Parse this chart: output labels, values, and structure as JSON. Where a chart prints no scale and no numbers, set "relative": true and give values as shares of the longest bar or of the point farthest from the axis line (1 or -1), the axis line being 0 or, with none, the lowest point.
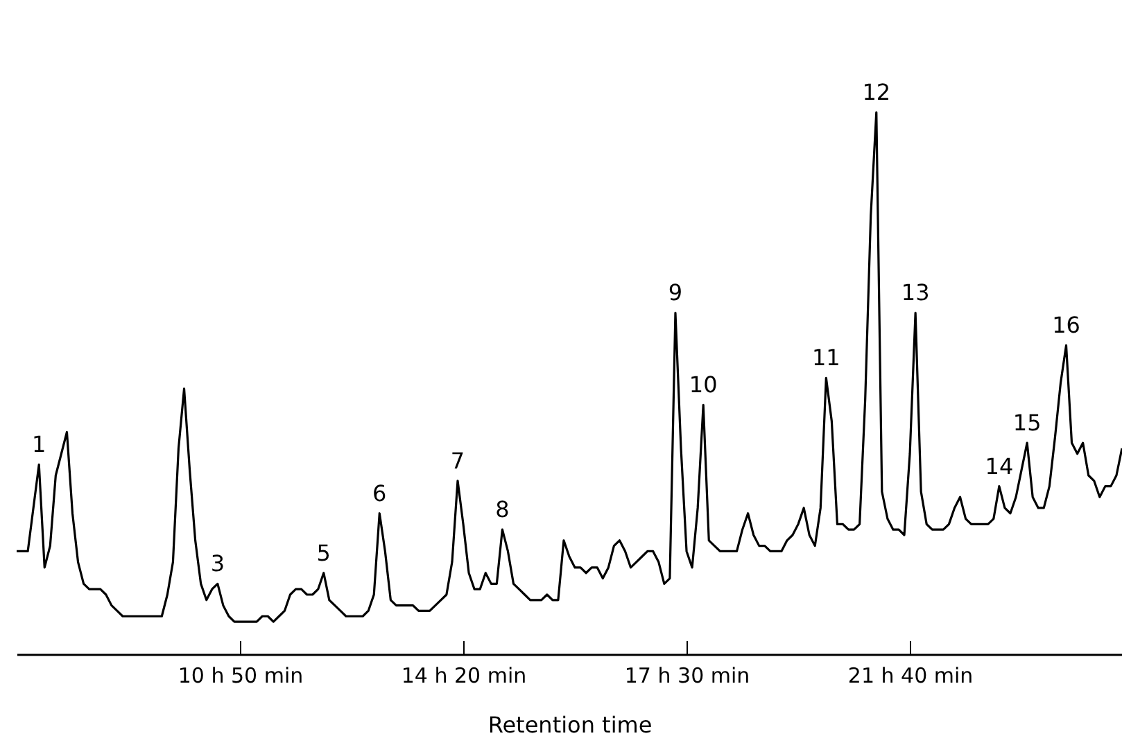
{
  "chart_data": {
    "type": "line",
    "relative": true,
    "xlabel": "Retention time",
    "categories": [
      null,
      null,
      null,
      null,
      null,
      null,
      null,
      null,
      null,
      null,
      null,
      null,
      null,
      null,
      null,
      null,
      null,
      null,
      null,
      null,
      null,
      null,
      null,
      null,
      null,
      null,
      null,
      null,
      null,
      null,
      null,
      null,
      null,
      null,
      null,
      null,
      null,
      null,
      null,
      null,
      "10 h 50 min",
      null,
      null,
      null,
      null,
      null,
      null,
      null,
      null,
      null,
      null,
      null,
      null,
      null,
      null,
      null,
      null,
      null,
      null,
      null,
      null,
      null,
      null,
      null,
      null,
      null,
      null,
      null,
      null,
      null,
      null,
      null,
      null,
      null,
      null,
      null,
      null,
      null,
      null,
      null,
      "14 h 20 min",
      null,
      null,
      null,
      null,
      null,
      null,
      null,
      null,
      null,
      null,
      null,
      null,
      null,
      null,
      null,
      null,
      null,
      null,
      null,
      null,
      null,
      null,
      null,
      null,
      null,
      null,
      null,
      null,
      null,
      null,
      null,
      null,
      null,
      null,
      null,
      null,
      null,
      null,
      null,
      "17 h 30 min",
      null,
      null,
      null,
      null,
      null,
      null,
      null,
      null,
      null,
      null,
      null,
      null,
      null,
      null,
      null,
      null,
      null,
      null,
      null,
      null,
      null,
      null,
      null,
      null,
      null,
      null,
      null,
      null,
      null,
      null,
      null,
      null,
      null,
      null,
      null,
      null,
      null,
      null,
      null,
      "21 h 40 min",
      null,
      null,
      null,
      null,
      null,
      null,
      null,
      null,
      null,
      null,
      null,
      null,
      null,
      null,
      null,
      null,
      null,
      null,
      null,
      null,
      null,
      null,
      null,
      null,
      null,
      null,
      null,
      null,
      null,
      null,
      null,
      null,
      null,
      null,
      null,
      null,
      null,
      null
    ],
    "grid": false,
    "marker": "none",
    "line_style": "solid",
    "series": [
      {
        "color": "#000000",
        "values": [
          0.19,
          0.19,
          0.19,
          0.27,
          0.35,
          0.16,
          0.2,
          0.33,
          0.37,
          0.41,
          0.26,
          0.17,
          0.13,
          0.12,
          0.12,
          0.12,
          0.11,
          0.09,
          0.08,
          0.07,
          0.07,
          0.07,
          0.07,
          0.07,
          0.07,
          0.07,
          0.07,
          0.11,
          0.17,
          0.38,
          0.49,
          0.34,
          0.21,
          0.13,
          0.1,
          0.12,
          0.13,
          0.09,
          0.07,
          0.06,
          0.06,
          0.06,
          0.06,
          0.06,
          0.07,
          0.07,
          0.06,
          0.07,
          0.08,
          0.11,
          0.12,
          0.12,
          0.11,
          0.11,
          0.12,
          0.15,
          0.1,
          0.09,
          0.08,
          0.07,
          0.07,
          0.07,
          0.07,
          0.08,
          0.11,
          0.26,
          0.19,
          0.1,
          0.09,
          0.09,
          0.09,
          0.09,
          0.08,
          0.08,
          0.08,
          0.09,
          0.1,
          0.11,
          0.17,
          0.32,
          0.24,
          0.15,
          0.12,
          0.12,
          0.15,
          0.13,
          0.13,
          0.23,
          0.19,
          0.13,
          0.12,
          0.11,
          0.1,
          0.1,
          0.1,
          0.11,
          0.1,
          0.1,
          0.21,
          0.18,
          0.16,
          0.16,
          0.15,
          0.16,
          0.16,
          0.14,
          0.16,
          0.2,
          0.21,
          0.19,
          0.16,
          0.17,
          0.18,
          0.19,
          0.19,
          0.17,
          0.13,
          0.14,
          0.63,
          0.38,
          0.19,
          0.16,
          0.27,
          0.46,
          0.21,
          0.2,
          0.19,
          0.19,
          0.19,
          0.19,
          0.23,
          0.26,
          0.22,
          0.2,
          0.2,
          0.19,
          0.19,
          0.19,
          0.21,
          0.22,
          0.24,
          0.27,
          0.22,
          0.2,
          0.27,
          0.51,
          0.43,
          0.24,
          0.24,
          0.23,
          0.23,
          0.24,
          0.47,
          0.81,
          1,
          0.3,
          0.25,
          0.23,
          0.23,
          0.22,
          0.37,
          0.63,
          0.3,
          0.24,
          0.23,
          0.23,
          0.23,
          0.24,
          0.27,
          0.29,
          0.25,
          0.24,
          0.24,
          0.24,
          0.24,
          0.25,
          0.31,
          0.27,
          0.26,
          0.29,
          0.34,
          0.39,
          0.29,
          0.27,
          0.27,
          0.31,
          0.4,
          0.5,
          0.57,
          0.39,
          0.37,
          0.39,
          0.33,
          0.32,
          0.29,
          0.31,
          0.31,
          0.33,
          0.38
        ]
      }
    ],
    "annotations": [
      {
        "text": "1",
        "y": 0.35
      },
      {
        "text": "3",
        "y": 0.13
      },
      {
        "text": "5",
        "y": 0.15
      },
      {
        "text": "6",
        "y": 0.26
      },
      {
        "text": "7",
        "y": 0.32
      },
      {
        "text": "8",
        "y": 0.23
      },
      {
        "text": "9",
        "y": 0.63
      },
      {
        "text": "10",
        "y": 0.46
      },
      {
        "text": "11",
        "y": 0.51
      },
      {
        "text": "12",
        "y": 1
      },
      {
        "text": "13",
        "y": 0.63
      },
      {
        "text": "14",
        "y": 0.31
      },
      {
        "text": "15",
        "y": 0.39
      },
      {
        "text": "16",
        "y": 0.57
      }
    ]
  }
}
